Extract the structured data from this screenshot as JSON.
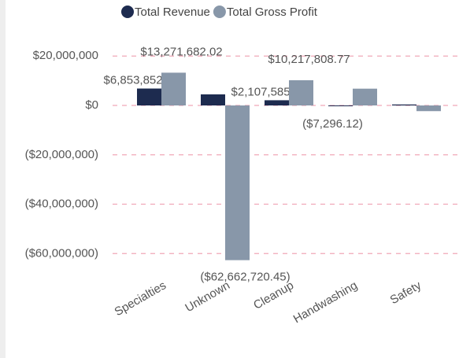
{
  "chart_data": {
    "type": "bar",
    "categories": [
      "Specialties",
      "Unknown",
      "Cleanup",
      "Handwashing",
      "Safety"
    ],
    "series": [
      {
        "name": "Total Revenue",
        "color": "#1d2b4f",
        "values": [
          6853852.73,
          4500000,
          2107585.46,
          -7296.12,
          400000
        ],
        "value_labels": [
          "$6,853,852.73",
          null,
          "$2,107,585.46",
          "($7,296.12)",
          null
        ]
      },
      {
        "name": "Total Gross Profit",
        "color": "#8897a9",
        "values": [
          13271682.02,
          -62662720.45,
          10217808.77,
          6800000,
          -2300000
        ],
        "value_labels": [
          "$13,271,682.02",
          "($62,662,720.45)",
          "$10,217,808.77",
          null,
          null
        ]
      }
    ],
    "ylim": [
      -63000000,
      30000000
    ],
    "yticks": [
      {
        "value": -60000000,
        "label": "($60,000,000)"
      },
      {
        "value": -40000000,
        "label": "($40,000,000)"
      },
      {
        "value": -20000000,
        "label": "($20,000,000)"
      },
      {
        "value": 0,
        "label": "$0"
      },
      {
        "value": 20000000,
        "label": "$20,000,000"
      }
    ],
    "grid": true,
    "legend": "top"
  }
}
